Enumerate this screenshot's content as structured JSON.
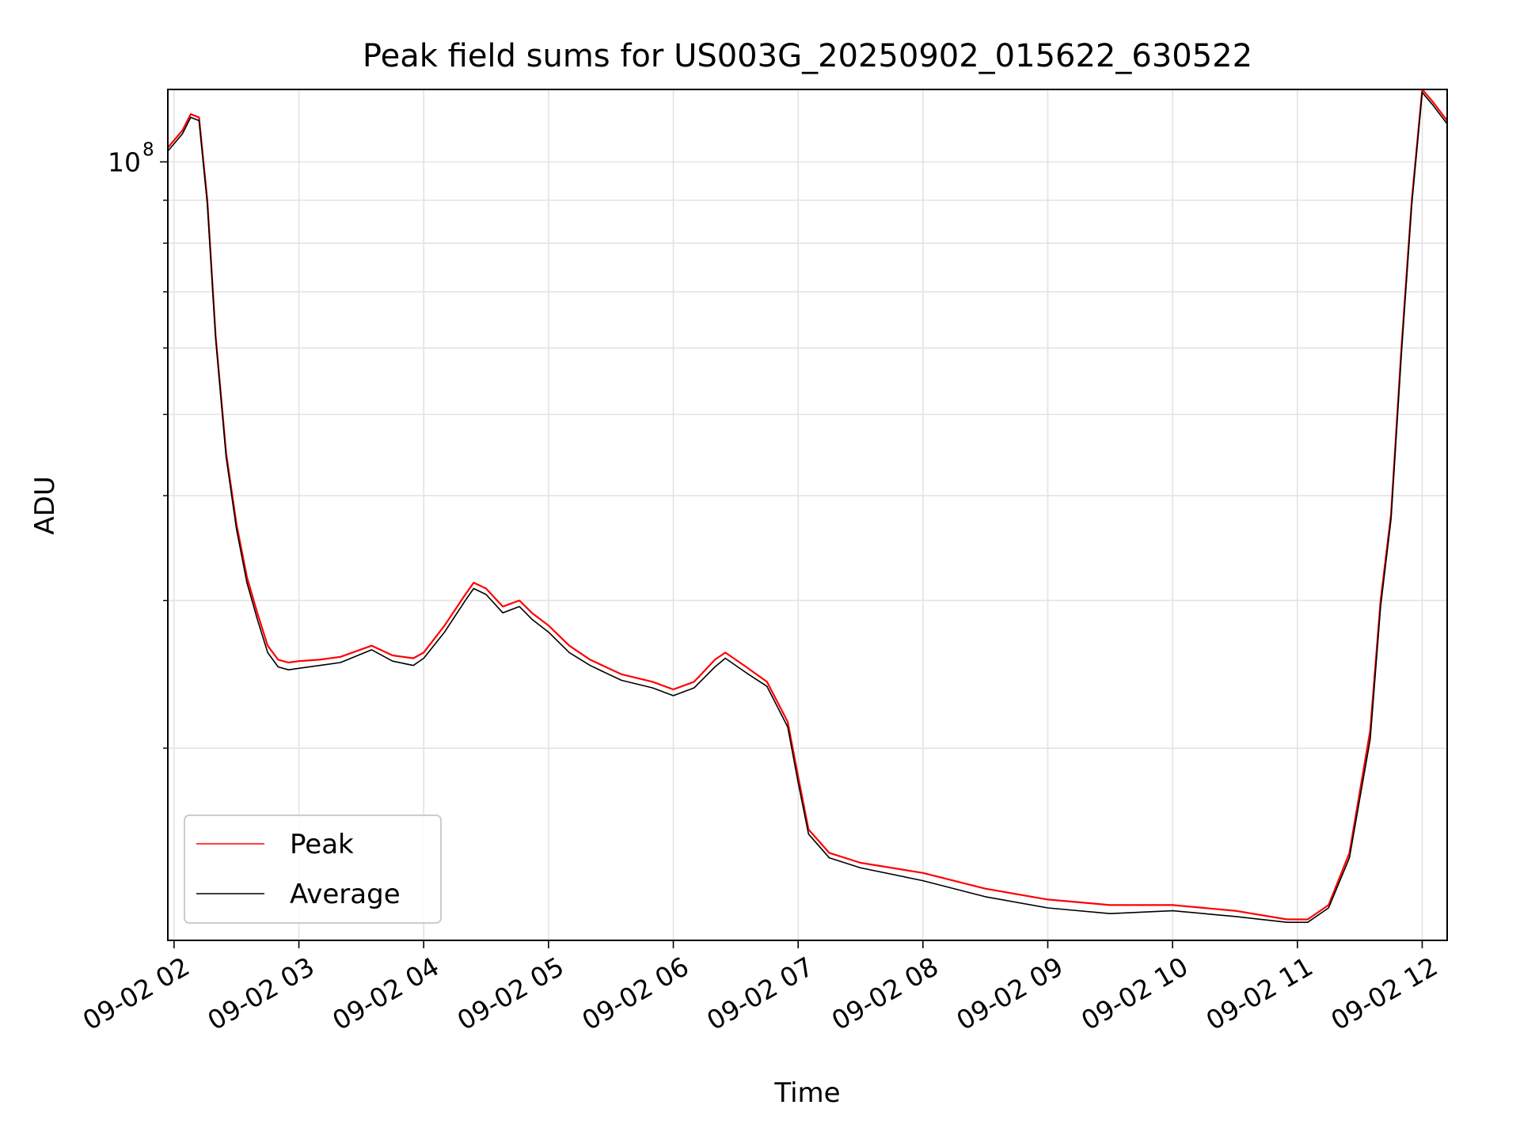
{
  "chart_data": {
    "type": "line",
    "title": "Peak field sums for US003G_20250902_015622_630522",
    "xlabel": "Time",
    "ylabel": "ADU",
    "y_scale": "log",
    "ylim": [
      11800000,
      122000000
    ],
    "xlim": [
      "2025-09-02 01:57",
      "2025-09-02 12:12"
    ],
    "x_tick_labels": [
      "09-02 02",
      "09-02 03",
      "09-02 04",
      "09-02 05",
      "09-02 06",
      "09-02 07",
      "09-02 08",
      "09-02 09",
      "09-02 10",
      "09-02 11",
      "09-02 12"
    ],
    "x_ticks": [
      "2025-09-02 02:00",
      "2025-09-02 03:00",
      "2025-09-02 04:00",
      "2025-09-02 05:00",
      "2025-09-02 06:00",
      "2025-09-02 07:00",
      "2025-09-02 08:00",
      "2025-09-02 09:00",
      "2025-09-02 10:00",
      "2025-09-02 11:00",
      "2025-09-02 12:00"
    ],
    "y_major_tick": {
      "value": 100000000,
      "base": "10",
      "exponent": "8"
    },
    "y_minor_ticks": [
      20000000,
      30000000,
      40000000,
      50000000,
      60000000,
      70000000,
      80000000,
      90000000
    ],
    "grid": true,
    "legend_position": "lower-left",
    "series": [
      {
        "name": "Peak",
        "color": "#ff0000",
        "x": [
          "2025-09-02 01:57",
          "2025-09-02 02:04",
          "2025-09-02 02:08",
          "2025-09-02 02:12",
          "2025-09-02 02:16",
          "2025-09-02 02:20",
          "2025-09-02 02:25",
          "2025-09-02 02:30",
          "2025-09-02 02:35",
          "2025-09-02 02:40",
          "2025-09-02 02:45",
          "2025-09-02 02:50",
          "2025-09-02 02:55",
          "2025-09-02 03:00",
          "2025-09-02 03:10",
          "2025-09-02 03:20",
          "2025-09-02 03:35",
          "2025-09-02 03:45",
          "2025-09-02 03:55",
          "2025-09-02 04:00",
          "2025-09-02 04:10",
          "2025-09-02 04:20",
          "2025-09-02 04:24",
          "2025-09-02 04:30",
          "2025-09-02 04:38",
          "2025-09-02 04:46",
          "2025-09-02 04:52",
          "2025-09-02 05:00",
          "2025-09-02 05:10",
          "2025-09-02 05:20",
          "2025-09-02 05:35",
          "2025-09-02 05:50",
          "2025-09-02 06:00",
          "2025-09-02 06:10",
          "2025-09-02 06:20",
          "2025-09-02 06:25",
          "2025-09-02 06:35",
          "2025-09-02 06:45",
          "2025-09-02 06:55",
          "2025-09-02 07:00",
          "2025-09-02 07:05",
          "2025-09-02 07:15",
          "2025-09-02 07:30",
          "2025-09-02 08:00",
          "2025-09-02 08:30",
          "2025-09-02 09:00",
          "2025-09-02 09:30",
          "2025-09-02 10:00",
          "2025-09-02 10:30",
          "2025-09-02 10:55",
          "2025-09-02 11:05",
          "2025-09-02 11:15",
          "2025-09-02 11:25",
          "2025-09-02 11:35",
          "2025-09-02 11:40",
          "2025-09-02 11:45",
          "2025-09-02 11:50",
          "2025-09-02 11:55",
          "2025-09-02 12:00",
          "2025-09-02 12:05",
          "2025-09-02 12:12"
        ],
        "y": [
          104000000,
          109000000,
          114000000,
          113000000,
          90000000,
          62000000,
          45000000,
          37000000,
          32000000,
          29000000,
          26500000,
          25500000,
          25300000,
          25400000,
          25500000,
          25700000,
          26500000,
          25800000,
          25600000,
          26000000,
          28000000,
          30500000,
          31500000,
          31000000,
          29500000,
          30000000,
          29000000,
          28000000,
          26500000,
          25500000,
          24500000,
          24000000,
          23500000,
          24000000,
          25500000,
          26000000,
          25000000,
          24000000,
          21500000,
          18500000,
          16000000,
          15000000,
          14600000,
          14200000,
          13600000,
          13200000,
          13000000,
          13000000,
          12800000,
          12500000,
          12500000,
          13000000,
          15000000,
          21000000,
          30000000,
          38000000,
          60000000,
          90000000,
          122000000,
          118000000,
          112000000
        ]
      },
      {
        "name": "Average",
        "color": "#000000",
        "x": [
          "2025-09-02 01:57",
          "2025-09-02 02:04",
          "2025-09-02 02:08",
          "2025-09-02 02:12",
          "2025-09-02 02:16",
          "2025-09-02 02:20",
          "2025-09-02 02:25",
          "2025-09-02 02:30",
          "2025-09-02 02:35",
          "2025-09-02 02:40",
          "2025-09-02 02:45",
          "2025-09-02 02:50",
          "2025-09-02 02:55",
          "2025-09-02 03:00",
          "2025-09-02 03:10",
          "2025-09-02 03:20",
          "2025-09-02 03:35",
          "2025-09-02 03:45",
          "2025-09-02 03:55",
          "2025-09-02 04:00",
          "2025-09-02 04:10",
          "2025-09-02 04:20",
          "2025-09-02 04:24",
          "2025-09-02 04:30",
          "2025-09-02 04:38",
          "2025-09-02 04:46",
          "2025-09-02 04:52",
          "2025-09-02 05:00",
          "2025-09-02 05:10",
          "2025-09-02 05:20",
          "2025-09-02 05:35",
          "2025-09-02 05:50",
          "2025-09-02 06:00",
          "2025-09-02 06:10",
          "2025-09-02 06:20",
          "2025-09-02 06:25",
          "2025-09-02 06:35",
          "2025-09-02 06:45",
          "2025-09-02 06:55",
          "2025-09-02 07:00",
          "2025-09-02 07:05",
          "2025-09-02 07:15",
          "2025-09-02 07:30",
          "2025-09-02 08:00",
          "2025-09-02 08:30",
          "2025-09-02 09:00",
          "2025-09-02 09:30",
          "2025-09-02 10:00",
          "2025-09-02 10:30",
          "2025-09-02 10:55",
          "2025-09-02 11:05",
          "2025-09-02 11:15",
          "2025-09-02 11:25",
          "2025-09-02 11:35",
          "2025-09-02 11:40",
          "2025-09-02 11:45",
          "2025-09-02 11:50",
          "2025-09-02 11:55",
          "2025-09-02 12:00",
          "2025-09-02 12:05",
          "2025-09-02 12:12"
        ],
        "y": [
          103000000,
          108000000,
          113000000,
          112000000,
          89000000,
          61500000,
          44500000,
          36500000,
          31500000,
          28500000,
          26000000,
          25000000,
          24800000,
          24900000,
          25100000,
          25300000,
          26200000,
          25400000,
          25100000,
          25600000,
          27500000,
          30000000,
          31000000,
          30500000,
          29000000,
          29500000,
          28500000,
          27500000,
          26000000,
          25100000,
          24100000,
          23600000,
          23100000,
          23600000,
          25000000,
          25600000,
          24600000,
          23700000,
          21200000,
          18200000,
          15800000,
          14800000,
          14400000,
          13900000,
          13300000,
          12900000,
          12700000,
          12800000,
          12600000,
          12400000,
          12400000,
          12900000,
          14800000,
          20500000,
          29500000,
          37500000,
          59000000,
          89000000,
          121000000,
          117000000,
          111000000
        ]
      }
    ]
  }
}
